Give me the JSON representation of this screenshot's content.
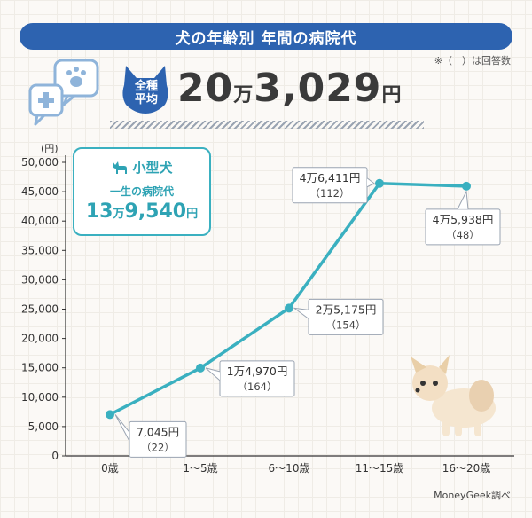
{
  "title": "犬の年齢別 年間の病院代",
  "note": "※（　）は回答数",
  "average": {
    "badge_line1": "全種",
    "badge_line2": "平均",
    "value_main": "20",
    "value_unit1": "万",
    "value_rest": "3,029",
    "value_unit2": "円"
  },
  "inset": {
    "breed": "小型犬",
    "lifetime_label": "一生の病院代",
    "lifetime_main": "13",
    "lifetime_unit1": "万",
    "lifetime_rest": "9,540",
    "lifetime_unit2": "円"
  },
  "credit": "MoneyGeek調べ",
  "colors": {
    "accent": "#3ab0c0",
    "title_bg": "#2d63b0",
    "line": "#3ab0c0"
  },
  "icons": [
    "chat-bubble-paw-icon",
    "chat-bubble-plus-icon",
    "dog-head-icon",
    "small-dog-icon",
    "chihuahua-illustration"
  ],
  "chart_data": {
    "type": "line",
    "ylabel": "(円)",
    "ylim": [
      0,
      50000
    ],
    "yticks": [
      0,
      5000,
      10000,
      15000,
      20000,
      25000,
      30000,
      35000,
      40000,
      45000,
      50000
    ],
    "ytick_labels": [
      "0",
      "5,000",
      "10,000",
      "15,000",
      "20,000",
      "25,000",
      "30,000",
      "35,000",
      "40,000",
      "45,000",
      "50,000"
    ],
    "categories": [
      "0歳",
      "1～5歳",
      "6～10歳",
      "11～15歳",
      "16～20歳"
    ],
    "values": [
      7045,
      14970,
      25175,
      46411,
      45938
    ],
    "data_labels": [
      {
        "value": "7,045円",
        "count": "（22）"
      },
      {
        "value": "1万4,970円",
        "count": "（164）"
      },
      {
        "value": "2万5,175円",
        "count": "（154）"
      },
      {
        "value": "4万6,411円",
        "count": "（112）"
      },
      {
        "value": "4万5,938円",
        "count": "（48）"
      }
    ]
  }
}
